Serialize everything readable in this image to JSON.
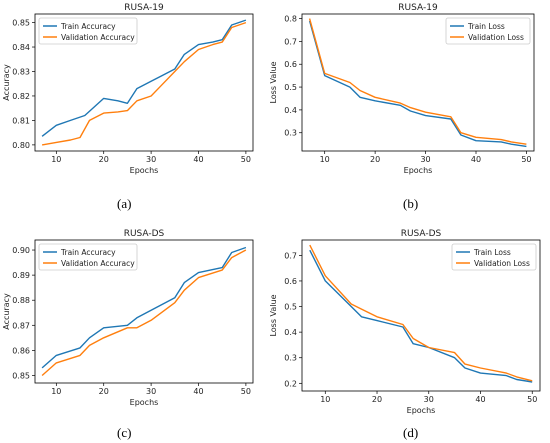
{
  "colors": {
    "train": "#1f77b4",
    "validation": "#ff7f0e"
  },
  "captions": [
    "(a)",
    "(b)",
    "(c)",
    "(d)"
  ],
  "chart_data": [
    {
      "type": "line",
      "title": "RUSA-19",
      "xlabel": "Epochs",
      "ylabel": "Accuracy",
      "xlim": [
        5.5,
        51.5
      ],
      "ylim": [
        0.7975,
        0.8535
      ],
      "xticks": [
        10,
        20,
        30,
        40,
        50
      ],
      "yticks": [
        0.8,
        0.81,
        0.82,
        0.83,
        0.84,
        0.85
      ],
      "ytick_labels": [
        "0.80",
        "0.81",
        "0.82",
        "0.83",
        "0.84",
        "0.85"
      ],
      "legend": "upper-left",
      "series": [
        {
          "name": "Train Accuracy",
          "x": [
            7,
            10,
            13,
            16,
            20,
            23,
            25,
            27,
            30,
            32,
            35,
            37,
            40,
            43,
            45,
            47,
            50
          ],
          "y": [
            0.8035,
            0.808,
            0.81,
            0.812,
            0.819,
            0.818,
            0.817,
            0.823,
            0.826,
            0.828,
            0.831,
            0.837,
            0.841,
            0.842,
            0.843,
            0.849,
            0.851
          ]
        },
        {
          "name": "Validation Accuracy",
          "x": [
            7,
            10,
            13,
            15,
            17,
            20,
            23,
            25,
            27,
            30,
            32,
            35,
            37,
            40,
            43,
            45,
            47,
            50
          ],
          "y": [
            0.8,
            0.801,
            0.802,
            0.803,
            0.81,
            0.813,
            0.8135,
            0.814,
            0.818,
            0.82,
            0.824,
            0.83,
            0.834,
            0.839,
            0.841,
            0.842,
            0.848,
            0.85
          ]
        }
      ]
    },
    {
      "type": "line",
      "title": "RUSA-19",
      "xlabel": "Epochs",
      "ylabel": "Loss Value",
      "xlim": [
        5.5,
        51.5
      ],
      "ylim": [
        0.22,
        0.82
      ],
      "xticks": [
        10,
        20,
        30,
        40,
        50
      ],
      "yticks": [
        0.3,
        0.4,
        0.5,
        0.6,
        0.7,
        0.8
      ],
      "ytick_labels": [
        "0.3",
        "0.4",
        "0.5",
        "0.6",
        "0.7",
        "0.8"
      ],
      "legend": "upper-right",
      "series": [
        {
          "name": "Train Loss",
          "x": [
            7,
            10,
            15,
            17,
            20,
            25,
            27,
            30,
            35,
            37,
            40,
            45,
            47,
            50
          ],
          "y": [
            0.79,
            0.55,
            0.5,
            0.455,
            0.44,
            0.42,
            0.395,
            0.375,
            0.36,
            0.29,
            0.265,
            0.26,
            0.25,
            0.24
          ]
        },
        {
          "name": "Validation Loss",
          "x": [
            7,
            10,
            15,
            17,
            20,
            25,
            27,
            30,
            35,
            37,
            40,
            45,
            47,
            50
          ],
          "y": [
            0.8,
            0.56,
            0.52,
            0.485,
            0.455,
            0.43,
            0.41,
            0.39,
            0.37,
            0.3,
            0.28,
            0.27,
            0.26,
            0.25
          ]
        }
      ]
    },
    {
      "type": "line",
      "title": "RUSA-DS",
      "xlabel": "Epochs",
      "ylabel": "Accuracy",
      "xlim": [
        5.5,
        51.5
      ],
      "ylim": [
        0.847,
        0.904
      ],
      "xticks": [
        10,
        20,
        30,
        40,
        50
      ],
      "yticks": [
        0.85,
        0.86,
        0.87,
        0.88,
        0.89,
        0.9
      ],
      "ytick_labels": [
        "0.85",
        "0.86",
        "0.87",
        "0.88",
        "0.89",
        "0.90"
      ],
      "legend": "upper-left",
      "series": [
        {
          "name": "Train Accuracy",
          "x": [
            7,
            10,
            15,
            17,
            20,
            25,
            27,
            30,
            35,
            37,
            40,
            45,
            47,
            50
          ],
          "y": [
            0.853,
            0.858,
            0.861,
            0.865,
            0.869,
            0.87,
            0.873,
            0.876,
            0.881,
            0.887,
            0.891,
            0.893,
            0.899,
            0.901
          ]
        },
        {
          "name": "Validation Accuracy",
          "x": [
            7,
            10,
            15,
            17,
            20,
            25,
            27,
            30,
            35,
            37,
            40,
            45,
            47,
            50
          ],
          "y": [
            0.85,
            0.855,
            0.858,
            0.862,
            0.865,
            0.869,
            0.869,
            0.872,
            0.879,
            0.884,
            0.889,
            0.892,
            0.897,
            0.9
          ]
        }
      ]
    },
    {
      "type": "line",
      "title": "RUSA-DS",
      "xlabel": "Epochs",
      "ylabel": "Loss Value",
      "xlim": [
        5.5,
        51.5
      ],
      "ylim": [
        0.17,
        0.76
      ],
      "xticks": [
        10,
        20,
        30,
        40,
        50
      ],
      "yticks": [
        0.2,
        0.3,
        0.4,
        0.5,
        0.6,
        0.7
      ],
      "ytick_labels": [
        "0.2",
        "0.3",
        "0.4",
        "0.5",
        "0.6",
        "0.7"
      ],
      "legend": "upper-right",
      "series": [
        {
          "name": "Train Loss",
          "x": [
            7,
            10,
            15,
            17,
            20,
            25,
            27,
            30,
            35,
            37,
            40,
            45,
            47,
            50
          ],
          "y": [
            0.72,
            0.6,
            0.5,
            0.46,
            0.445,
            0.42,
            0.355,
            0.34,
            0.3,
            0.26,
            0.24,
            0.23,
            0.215,
            0.205
          ]
        },
        {
          "name": "Validation Loss",
          "x": [
            7,
            10,
            15,
            17,
            20,
            25,
            27,
            30,
            35,
            37,
            40,
            45,
            47,
            50
          ],
          "y": [
            0.74,
            0.62,
            0.51,
            0.49,
            0.46,
            0.43,
            0.375,
            0.34,
            0.32,
            0.275,
            0.26,
            0.24,
            0.225,
            0.21
          ]
        }
      ]
    }
  ]
}
